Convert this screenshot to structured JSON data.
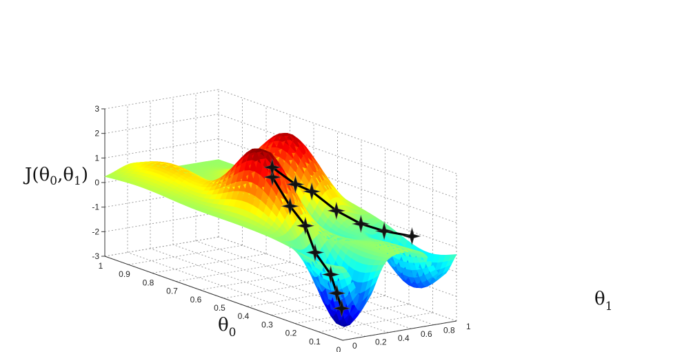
{
  "chart_data": {
    "type": "surface3d",
    "title": "",
    "axes": {
      "theta0": {
        "label": "θ",
        "subscript": "0",
        "ticks": [
          "0",
          "0.1",
          "0.2",
          "0.3",
          "0.4",
          "0.5",
          "0.6",
          "0.7",
          "0.8",
          "0.9",
          "1"
        ],
        "range": [
          0,
          1
        ]
      },
      "theta1": {
        "label": "θ",
        "subscript": "1",
        "ticks": [
          "0",
          "0.2",
          "0.4",
          "0.6",
          "0.8",
          "1"
        ],
        "range": [
          0,
          1
        ]
      },
      "z": {
        "label_prefix": "J(θ",
        "label_sub0": "0",
        "label_mid": ",θ",
        "label_sub1": "1",
        "label_suffix": ")",
        "ticks": [
          "-3",
          "-2",
          "-1",
          "0",
          "1",
          "2",
          "3"
        ],
        "range": [
          -3,
          3
        ]
      }
    },
    "colormap": "jet",
    "grid": true,
    "paths": [
      {
        "points": [
          {
            "theta0": 0.42,
            "theta1": 0.26,
            "z": 2.0
          },
          {
            "theta0": 0.36,
            "theta1": 0.29,
            "z": 1.0
          },
          {
            "theta0": 0.31,
            "theta1": 0.32,
            "z": 0.35
          },
          {
            "theta0": 0.25,
            "theta1": 0.28,
            "z": -0.5
          },
          {
            "theta0": 0.17,
            "theta1": 0.25,
            "z": -1.1
          },
          {
            "theta0": 0.13,
            "theta1": 0.22,
            "z": -1.7
          },
          {
            "theta0": 0.1,
            "theta1": 0.2,
            "z": -2.2
          }
        ]
      },
      {
        "points": [
          {
            "theta0": 0.44,
            "theta1": 0.3,
            "z": 2.3
          },
          {
            "theta0": 0.39,
            "theta1": 0.4,
            "z": 1.7
          },
          {
            "theta0": 0.35,
            "theta1": 0.46,
            "z": 1.5
          },
          {
            "theta0": 0.28,
            "theta1": 0.53,
            "z": 0.9
          },
          {
            "theta0": 0.22,
            "theta1": 0.62,
            "z": 0.5
          },
          {
            "theta0": 0.17,
            "theta1": 0.72,
            "z": 0.3
          },
          {
            "theta0": 0.12,
            "theta1": 0.86,
            "z": 0.15
          }
        ]
      }
    ]
  }
}
